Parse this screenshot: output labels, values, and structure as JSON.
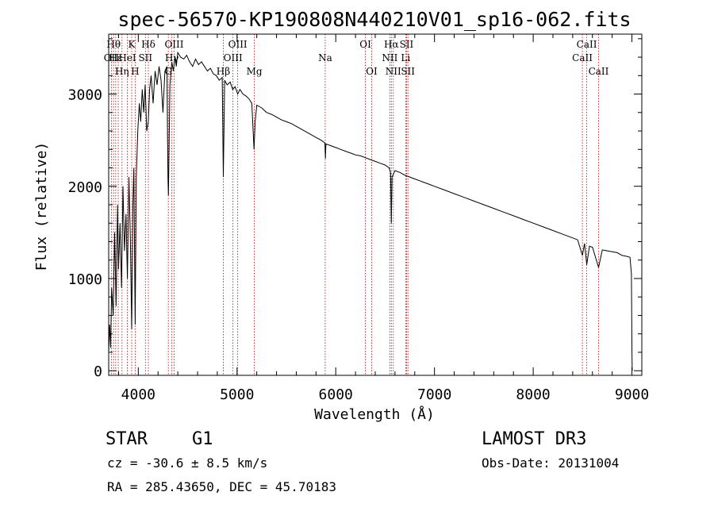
{
  "chart_data": {
    "type": "line",
    "title": "spec-56570-KP190808N440210V01_sp16-062.fits",
    "xlabel": "Wavelength (Å)",
    "ylabel": "Flux (relative)",
    "xlim": [
      3700,
      9100
    ],
    "ylim": [
      -50,
      3650
    ],
    "xticks": [
      4000,
      5000,
      6000,
      7000,
      8000,
      9000
    ],
    "yticks": [
      0,
      1000,
      2000,
      3000
    ],
    "series": [
      {
        "name": "flux",
        "x": [
          3700,
          3710,
          3720,
          3730,
          3745,
          3760,
          3775,
          3790,
          3800,
          3815,
          3830,
          3845,
          3860,
          3875,
          3890,
          3905,
          3920,
          3933,
          3945,
          3955,
          3968,
          3980,
          3995,
          4010,
          4025,
          4040,
          4055,
          4070,
          4085,
          4101,
          4115,
          4130,
          4150,
          4170,
          4190,
          4210,
          4230,
          4250,
          4270,
          4290,
          4300,
          4305,
          4320,
          4340,
          4355,
          4370,
          4385,
          4400,
          4430,
          4460,
          4490,
          4520,
          4550,
          4580,
          4610,
          4640,
          4670,
          4700,
          4730,
          4760,
          4790,
          4820,
          4850,
          4861,
          4875,
          4900,
          4930,
          4957,
          4980,
          5007,
          5030,
          5060,
          5090,
          5120,
          5150,
          5172,
          5183,
          5200,
          5250,
          5300,
          5350,
          5400,
          5450,
          5500,
          5550,
          5600,
          5650,
          5700,
          5750,
          5800,
          5850,
          5890,
          5895,
          5900,
          5950,
          6000,
          6050,
          6100,
          6150,
          6200,
          6250,
          6300,
          6350,
          6400,
          6450,
          6500,
          6540,
          6555,
          6563,
          6570,
          6600,
          6650,
          6700,
          6750,
          6800,
          6850,
          6900,
          6950,
          7000,
          7100,
          7200,
          7300,
          7400,
          7500,
          7600,
          7700,
          7800,
          7900,
          8000,
          8100,
          8200,
          8300,
          8400,
          8450,
          8498,
          8520,
          8542,
          8570,
          8600,
          8662,
          8700,
          8750,
          8800,
          8850,
          8900,
          8950,
          8980,
          8995,
          9000,
          9003
        ],
        "values": [
          200,
          500,
          250,
          900,
          600,
          1500,
          700,
          1800,
          1100,
          1600,
          900,
          2000,
          1300,
          1700,
          1000,
          2100,
          1400,
          450,
          1800,
          2200,
          500,
          2100,
          2600,
          2900,
          2700,
          3050,
          2800,
          3100,
          2600,
          2700,
          3050,
          3200,
          2900,
          3250,
          3100,
          3300,
          3150,
          2800,
          3250,
          3300,
          2100,
          1900,
          3100,
          3350,
          3250,
          3400,
          3300,
          3450,
          3400,
          3380,
          3420,
          3350,
          3300,
          3380,
          3320,
          3350,
          3300,
          3250,
          3280,
          3220,
          3200,
          3150,
          3180,
          2100,
          3150,
          3100,
          3130,
          3050,
          3080,
          3000,
          3050,
          3000,
          2980,
          2950,
          2900,
          2400,
          2700,
          2880,
          2850,
          2800,
          2780,
          2750,
          2720,
          2700,
          2680,
          2650,
          2620,
          2590,
          2560,
          2530,
          2500,
          2470,
          2300,
          2460,
          2440,
          2420,
          2400,
          2380,
          2360,
          2340,
          2330,
          2310,
          2290,
          2270,
          2250,
          2230,
          2200,
          2150,
          1600,
          2100,
          2170,
          2150,
          2120,
          2100,
          2080,
          2060,
          2040,
          2020,
          2000,
          1960,
          1920,
          1880,
          1840,
          1800,
          1760,
          1720,
          1680,
          1640,
          1600,
          1560,
          1520,
          1480,
          1440,
          1420,
          1250,
          1380,
          1150,
          1350,
          1340,
          1120,
          1310,
          1300,
          1290,
          1280,
          1250,
          1240,
          1230,
          1050,
          200,
          0
        ]
      }
    ],
    "line_markers": [
      {
        "wavelength": 3727,
        "label": "OII",
        "row": 1
      },
      {
        "wavelength": 3750,
        "label": "Hθ",
        "row": 0
      },
      {
        "wavelength": 3771,
        "label": "Hε",
        "row": 1
      },
      {
        "wavelength": 3797,
        "label": "",
        "row": 0
      },
      {
        "wavelength": 3835,
        "label": "Hη",
        "row": 2
      },
      {
        "wavelength": 3889,
        "label": "HeI",
        "row": 1
      },
      {
        "wavelength": 3933,
        "label": "K",
        "row": 0
      },
      {
        "wavelength": 3968,
        "label": "H",
        "row": 2
      },
      {
        "wavelength": 4072,
        "label": "SII",
        "row": 1
      },
      {
        "wavelength": 4102,
        "label": "Hδ",
        "row": 0
      },
      {
        "wavelength": 4304,
        "label": "G",
        "row": 2
      },
      {
        "wavelength": 4340,
        "label": "Hγ",
        "row": 1
      },
      {
        "wavelength": 4363,
        "label": "OIII",
        "row": 0
      },
      {
        "wavelength": 4861,
        "label": "Hβ",
        "row": 2
      },
      {
        "wavelength": 4959,
        "label": "OIII",
        "row": 1
      },
      {
        "wavelength": 5007,
        "label": "OIII",
        "row": 0
      },
      {
        "wavelength": 5175,
        "label": "Mg",
        "row": 2
      },
      {
        "wavelength": 5893,
        "label": "Na",
        "row": 1
      },
      {
        "wavelength": 6300,
        "label": "OI",
        "row": 0
      },
      {
        "wavelength": 6364,
        "label": "OI",
        "row": 2
      },
      {
        "wavelength": 6548,
        "label": "NII",
        "row": 1
      },
      {
        "wavelength": 6563,
        "label": "Hα",
        "row": 0
      },
      {
        "wavelength": 6583,
        "label": "NII",
        "row": 2
      },
      {
        "wavelength": 6708,
        "label": "Li",
        "row": 1
      },
      {
        "wavelength": 6717,
        "label": "SII",
        "row": 0
      },
      {
        "wavelength": 6731,
        "label": "SII",
        "row": 2
      },
      {
        "wavelength": 8498,
        "label": "CaII",
        "row": 1
      },
      {
        "wavelength": 8542,
        "label": "CaII",
        "row": 0
      },
      {
        "wavelength": 8662,
        "label": "CaII",
        "row": 2
      }
    ]
  },
  "info": {
    "class_label": "STAR",
    "subclass": "G1",
    "survey": "LAMOST DR3",
    "cz": "cz = -30.6 ± 8.5 km/s",
    "obs_date": "Obs-Date: 20131004",
    "coords": "RA = 285.43650, DEC =  45.70183"
  },
  "colors": {
    "axis": "#000000",
    "spectrum": "#000000",
    "marker": "#c00000",
    "background": "#ffffff"
  }
}
